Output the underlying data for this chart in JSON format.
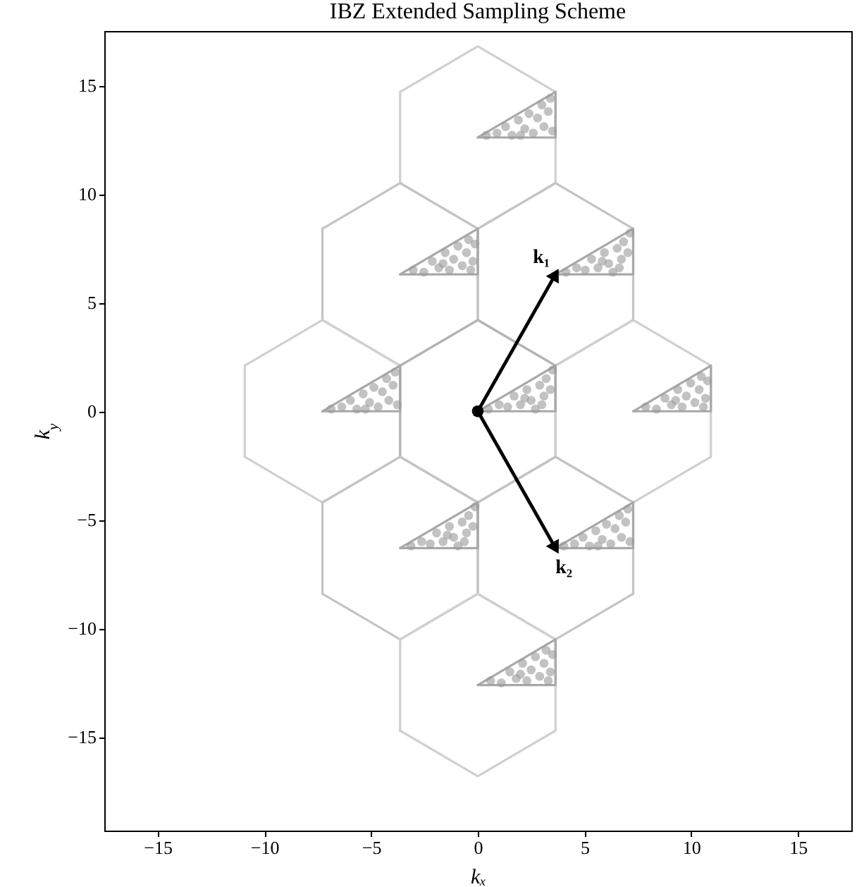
{
  "chart_data": {
    "type": "scatter",
    "title": "IBZ Extended Sampling Scheme",
    "xlabel": "kₓ",
    "ylabel": "k$_{y}$",
    "xlim": [
      -17.5,
      17.5
    ],
    "ylim": [
      -19.3,
      17.5
    ],
    "xticks": [
      -15,
      -10,
      -5,
      0,
      5,
      10,
      15
    ],
    "yticks": [
      -15,
      -10,
      -5,
      0,
      5,
      10,
      15
    ],
    "grid": false,
    "series": [
      {
        "type": "line",
        "color": "#d0d0d0",
        "x": [
          -3.64,
          -3.64,
          0,
          3.64,
          3.64
        ],
        "values": [
          10.5,
          14.7,
          16.8,
          14.7,
          10.5
        ]
      },
      {
        "type": "line",
        "color": "#d0d0d0",
        "x": [
          -3.64,
          0,
          3.64
        ],
        "values": [
          10.5,
          8.4,
          10.5
        ]
      },
      {
        "type": "line",
        "color": "#c4c4c4",
        "x": [
          -7.28,
          -7.28,
          -3.64,
          0,
          0
        ],
        "values": [
          4.2,
          8.4,
          10.5,
          8.4,
          4.2
        ]
      },
      {
        "type": "line",
        "color": "#c4c4c4",
        "x": [
          -7.28,
          -3.64,
          0
        ],
        "values": [
          4.2,
          2.1,
          4.2
        ]
      },
      {
        "type": "line",
        "color": "#c4c4c4",
        "x": [
          0,
          0,
          3.64,
          7.28,
          7.28
        ],
        "values": [
          4.2,
          8.4,
          10.5,
          8.4,
          4.2
        ]
      },
      {
        "type": "line",
        "color": "#c4c4c4",
        "x": [
          0,
          3.64,
          7.28
        ],
        "values": [
          4.2,
          2.1,
          4.2
        ]
      },
      {
        "type": "line",
        "color": "#d0d0d0",
        "x": [
          -10.92,
          -10.92,
          -7.28,
          -3.64,
          -3.64
        ],
        "values": [
          -2.1,
          2.1,
          4.2,
          2.1,
          -2.1
        ]
      },
      {
        "type": "line",
        "color": "#d0d0d0",
        "x": [
          -10.92,
          -7.28,
          -3.64
        ],
        "values": [
          -2.1,
          -4.2,
          -2.1
        ]
      },
      {
        "type": "line",
        "color": "#b4b4b4",
        "x": [
          -3.64,
          -3.64,
          0,
          3.64,
          3.64
        ],
        "values": [
          -2.1,
          2.1,
          4.2,
          2.1,
          -2.1
        ]
      },
      {
        "type": "line",
        "color": "#b4b4b4",
        "x": [
          -3.64,
          0,
          3.64
        ],
        "values": [
          -2.1,
          -4.2,
          -2.1
        ]
      },
      {
        "type": "line",
        "color": "#d0d0d0",
        "x": [
          3.64,
          3.64,
          7.28,
          10.92,
          10.92
        ],
        "values": [
          -2.1,
          2.1,
          4.2,
          2.1,
          -2.1
        ]
      },
      {
        "type": "line",
        "color": "#d0d0d0",
        "x": [
          3.64,
          7.28,
          10.92
        ],
        "values": [
          -2.1,
          -4.2,
          -2.1
        ]
      },
      {
        "type": "line",
        "color": "#c4c4c4",
        "x": [
          -7.28,
          -7.28,
          -3.64,
          0,
          0
        ],
        "values": [
          -8.4,
          -4.2,
          -2.1,
          -4.2,
          -8.4
        ]
      },
      {
        "type": "line",
        "color": "#c4c4c4",
        "x": [
          -7.28,
          -3.64,
          0
        ],
        "values": [
          -8.4,
          -10.5,
          -8.4
        ]
      },
      {
        "type": "line",
        "color": "#c4c4c4",
        "x": [
          0,
          0,
          3.64,
          7.28,
          7.28
        ],
        "values": [
          -8.4,
          -4.2,
          -2.1,
          -4.2,
          -8.4
        ]
      },
      {
        "type": "line",
        "color": "#c4c4c4",
        "x": [
          0,
          3.64,
          7.28
        ],
        "values": [
          -8.4,
          -10.5,
          -8.4
        ]
      },
      {
        "type": "line",
        "color": "#d0d0d0",
        "x": [
          -3.64,
          -3.64,
          0,
          3.64,
          3.64
        ],
        "values": [
          -14.7,
          -10.5,
          -8.4,
          -10.5,
          -14.7
        ]
      },
      {
        "type": "line",
        "color": "#d0d0d0",
        "x": [
          -3.64,
          0,
          3.64
        ],
        "values": [
          -14.7,
          -16.8,
          -14.7
        ]
      },
      {
        "type": "line",
        "color": "#a8a8a8",
        "x": [
          0,
          3.64,
          3.64
        ],
        "values": [
          12.6,
          12.6,
          14.7
        ]
      },
      {
        "type": "line",
        "color": "#a8a8a8",
        "x": [
          0,
          3.64
        ],
        "values": [
          12.6,
          14.7
        ]
      },
      {
        "type": "line",
        "color": "#a8a8a8",
        "x": [
          -3.64,
          0,
          0
        ],
        "values": [
          6.3,
          6.3,
          8.4
        ]
      },
      {
        "type": "line",
        "color": "#a8a8a8",
        "x": [
          -3.64,
          0
        ],
        "values": [
          6.3,
          8.4
        ]
      },
      {
        "type": "line",
        "color": "#a8a8a8",
        "x": [
          3.64,
          7.28,
          7.28
        ],
        "values": [
          6.3,
          6.3,
          8.4
        ]
      },
      {
        "type": "line",
        "color": "#a8a8a8",
        "x": [
          3.64,
          7.28
        ],
        "values": [
          6.3,
          8.4
        ]
      },
      {
        "type": "line",
        "color": "#a8a8a8",
        "x": [
          -7.28,
          -3.64,
          -3.64
        ],
        "values": [
          0,
          0,
          2.1
        ]
      },
      {
        "type": "line",
        "color": "#a8a8a8",
        "x": [
          -7.28,
          -3.64
        ],
        "values": [
          0,
          2.1
        ]
      },
      {
        "type": "line",
        "color": "#a8a8a8",
        "x": [
          0,
          3.64,
          3.64
        ],
        "values": [
          0,
          0,
          2.1
        ]
      },
      {
        "type": "line",
        "color": "#a8a8a8",
        "x": [
          0,
          3.64
        ],
        "values": [
          0,
          2.1
        ]
      },
      {
        "type": "line",
        "color": "#a8a8a8",
        "x": [
          7.28,
          10.92,
          10.92
        ],
        "values": [
          0,
          0,
          2.1
        ]
      },
      {
        "type": "line",
        "color": "#a8a8a8",
        "x": [
          7.28,
          10.92
        ],
        "values": [
          0,
          2.1
        ]
      },
      {
        "type": "line",
        "color": "#a8a8a8",
        "x": [
          -3.64,
          0,
          0
        ],
        "values": [
          -6.3,
          -6.3,
          -4.2
        ]
      },
      {
        "type": "line",
        "color": "#a8a8a8",
        "x": [
          -3.64,
          0
        ],
        "values": [
          -6.3,
          -4.2
        ]
      },
      {
        "type": "line",
        "color": "#a8a8a8",
        "x": [
          3.64,
          7.28,
          7.28
        ],
        "values": [
          -6.3,
          -6.3,
          -4.2
        ]
      },
      {
        "type": "line",
        "color": "#a8a8a8",
        "x": [
          3.64,
          7.28
        ],
        "values": [
          -6.3,
          -4.2
        ]
      },
      {
        "type": "line",
        "color": "#a8a8a8",
        "x": [
          0,
          3.64,
          3.64
        ],
        "values": [
          -12.6,
          -12.6,
          -10.5
        ]
      },
      {
        "type": "line",
        "color": "#a8a8a8",
        "x": [
          0,
          3.64
        ],
        "values": [
          -12.6,
          -10.5
        ]
      },
      {
        "color": "#999999",
        "marker": "circle",
        "x": [
          0.4,
          0.9,
          1.3,
          1.6,
          1.9,
          2.2,
          2.4,
          2.6,
          2.8,
          3.0,
          3.1,
          3.3,
          3.4,
          3.5,
          2.0,
          -3.03,
          -2.53,
          -2.13,
          -1.83,
          -1.53,
          -1.33,
          -1.13,
          -0.93,
          -0.73,
          -0.53,
          -0.43,
          -0.23,
          -0.13,
          -1.63,
          -0.33,
          4.13,
          4.63,
          5.03,
          5.33,
          5.63,
          5.93,
          6.13,
          6.33,
          6.53,
          6.73,
          6.83,
          7.03,
          7.13,
          5.83,
          6.63,
          -6.87,
          -6.37,
          -5.97,
          -5.67,
          -5.37,
          -5.07,
          -4.87,
          -4.67,
          -4.47,
          -4.27,
          -4.17,
          -3.97,
          -3.87,
          -3.77,
          -5.27,
          0.5,
          1.0,
          1.4,
          1.7,
          2.0,
          2.3,
          2.5,
          2.7,
          2.9,
          3.1,
          3.2,
          3.4,
          3.5,
          2.2,
          3.0,
          7.87,
          8.37,
          8.77,
          9.07,
          9.37,
          9.57,
          9.77,
          9.97,
          10.17,
          10.37,
          10.47,
          10.67,
          10.77,
          9.27,
          10.57,
          -3.13,
          -2.63,
          -2.23,
          -1.93,
          -1.63,
          -1.33,
          -1.13,
          -0.93,
          -0.73,
          -0.53,
          -0.43,
          -0.23,
          -0.13,
          -1.43,
          -0.63,
          4.03,
          4.53,
          4.93,
          5.23,
          5.53,
          5.83,
          6.03,
          6.23,
          6.43,
          6.63,
          6.73,
          6.93,
          7.03,
          7.13,
          5.63,
          0.6,
          1.1,
          1.5,
          1.8,
          2.1,
          2.3,
          2.5,
          2.7,
          2.9,
          3.1,
          3.2,
          3.4,
          3.5,
          2.0,
          3.3
        ],
        "values": [
          12.7,
          12.8,
          13.1,
          12.7,
          13.4,
          13.0,
          13.7,
          12.8,
          13.5,
          14.1,
          13.1,
          13.8,
          14.4,
          12.9,
          12.7,
          6.5,
          6.4,
          6.9,
          6.6,
          7.3,
          6.5,
          7.0,
          7.6,
          6.7,
          7.3,
          7.9,
          6.9,
          7.7,
          6.8,
          6.5,
          6.4,
          6.6,
          6.5,
          7.0,
          6.6,
          7.3,
          6.8,
          6.4,
          7.5,
          7.0,
          7.8,
          7.3,
          8.2,
          6.9,
          6.6,
          0.1,
          0.2,
          0.5,
          0.1,
          0.8,
          0.4,
          1.1,
          0.2,
          0.9,
          1.5,
          0.5,
          1.2,
          1.8,
          0.3,
          0.1,
          0.1,
          0.3,
          0.2,
          0.7,
          0.3,
          1.0,
          0.5,
          0.1,
          1.2,
          0.7,
          1.5,
          1.0,
          1.9,
          0.6,
          0.3,
          0.2,
          0.1,
          0.6,
          0.3,
          1.0,
          0.2,
          0.7,
          1.3,
          0.4,
          1.0,
          1.6,
          0.6,
          1.4,
          0.5,
          0.2,
          -6.2,
          -6.0,
          -6.1,
          -5.6,
          -6.0,
          -5.3,
          -5.8,
          -6.2,
          -5.1,
          -5.6,
          -4.8,
          -5.3,
          -4.4,
          -5.7,
          -6.0,
          -6.2,
          -6.1,
          -5.8,
          -6.2,
          -5.5,
          -5.9,
          -5.2,
          -6.1,
          -5.4,
          -4.8,
          -5.8,
          -5.1,
          -4.5,
          -6.0,
          -6.2,
          -12.4,
          -12.5,
          -12.0,
          -12.3,
          -11.6,
          -12.4,
          -11.9,
          -11.3,
          -12.2,
          -11.6,
          -11.0,
          -12.0,
          -11.2,
          -12.1,
          -12.4
        ]
      },
      {
        "type": "line",
        "color": "#000000",
        "marker": "triangle",
        "x": [
          0,
          3.64
        ],
        "values": [
          0,
          6.3
        ]
      },
      {
        "type": "line",
        "color": "#000000",
        "marker": "triangle",
        "x": [
          0,
          3.64
        ],
        "values": [
          0,
          -6.3
        ]
      },
      {
        "type": "scatter",
        "color": "#000000",
        "marker": "circle",
        "x": [
          0
        ],
        "values": [
          0
        ]
      }
    ],
    "annotations": [
      {
        "text": "k₁",
        "x": 3.64,
        "y": 6.3
      },
      {
        "text": "k₂",
        "x": 3.64,
        "y": -6.3
      }
    ]
  }
}
